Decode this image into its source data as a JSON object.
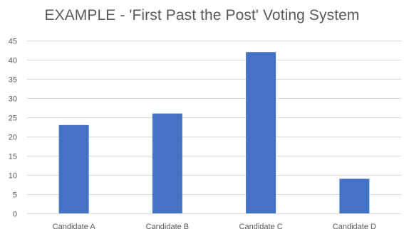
{
  "chart_data": {
    "type": "bar",
    "title": "EXAMPLE - 'First Past the Post' Voting System",
    "xlabel": "",
    "ylabel": "",
    "categories": [
      "Candidate A",
      "Candidate B",
      "Candidate C",
      "Candidate D"
    ],
    "values": [
      23,
      26,
      42,
      9
    ],
    "ylim": [
      0,
      45
    ],
    "yticks": [
      0,
      5,
      10,
      15,
      20,
      25,
      30,
      35,
      40,
      45
    ],
    "grid": true,
    "legend": "none",
    "colors": {
      "bar": "#4472C4",
      "grid": "#D9D9D9",
      "text": "#595959"
    }
  }
}
